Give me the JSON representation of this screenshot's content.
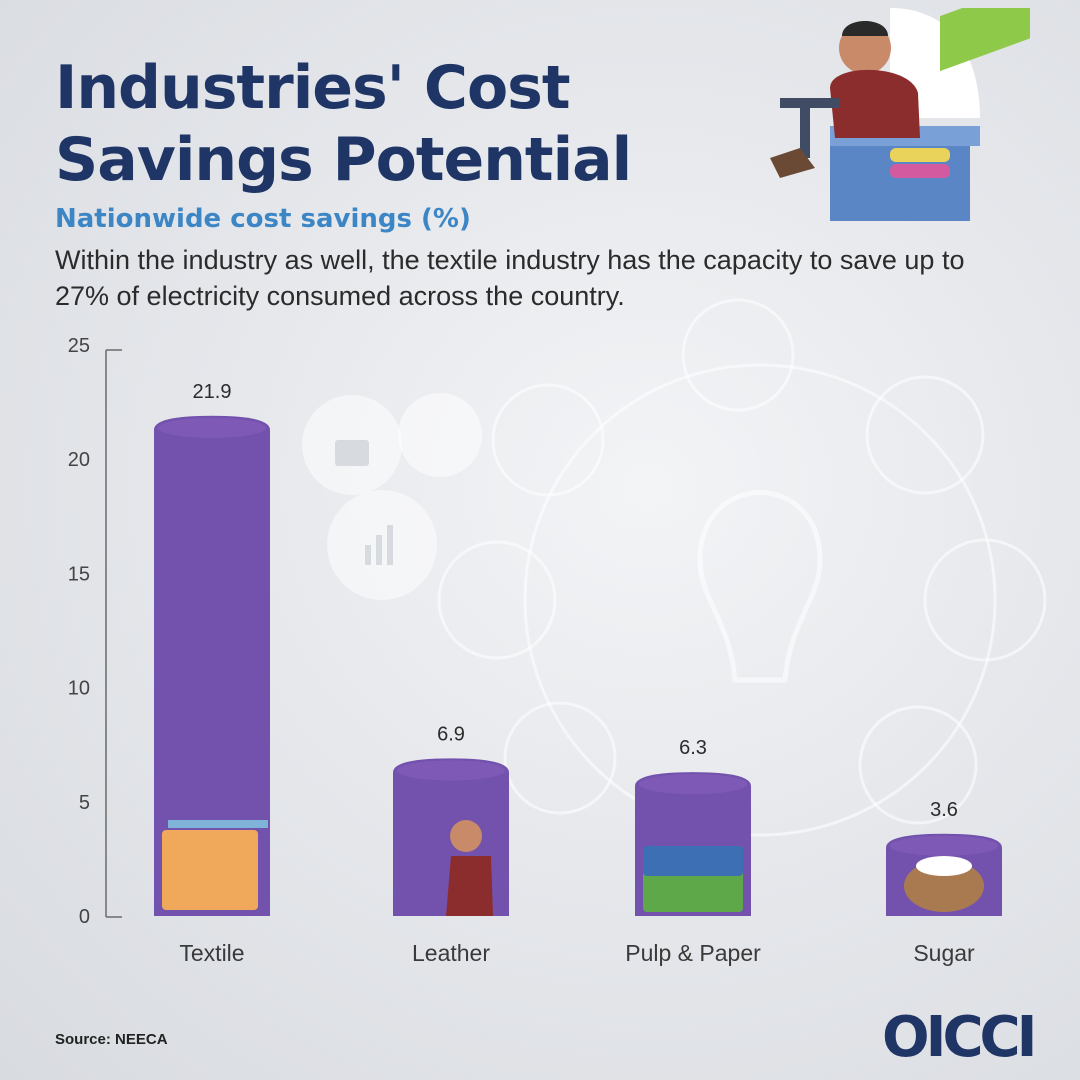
{
  "header": {
    "title_line1": "Industries' Cost",
    "title_line2": "Savings Potential",
    "subtitle": "Nationwide cost savings (%)",
    "description": "Within the industry as well, the textile industry has the capacity to save up to 27% of electricity consumed across the country."
  },
  "footer": {
    "source": "Source: NEECA",
    "logo": "OICCI"
  },
  "colors": {
    "bar": "#7352ad",
    "bar_top": "#8560bd",
    "title": "#1f3566",
    "subtitle": "#3d86c6"
  },
  "chart_data": {
    "type": "bar",
    "categories": [
      "Textile",
      "Leather",
      "Pulp & Paper",
      "Sugar"
    ],
    "values": [
      21.9,
      6.9,
      6.3,
      3.6
    ],
    "data_labels": [
      "21.9",
      "6.9",
      "6.3",
      "3.6"
    ],
    "yticks": [
      "0",
      "5",
      "10",
      "15",
      "20",
      "25"
    ],
    "ylim": [
      0,
      25
    ],
    "title": "",
    "xlabel": "",
    "ylabel": "",
    "grid": false,
    "legend": "none",
    "icons": [
      "loom-icon",
      "leather-worker-icon",
      "paper-ream-icon",
      "sugar-sack-icon"
    ]
  }
}
